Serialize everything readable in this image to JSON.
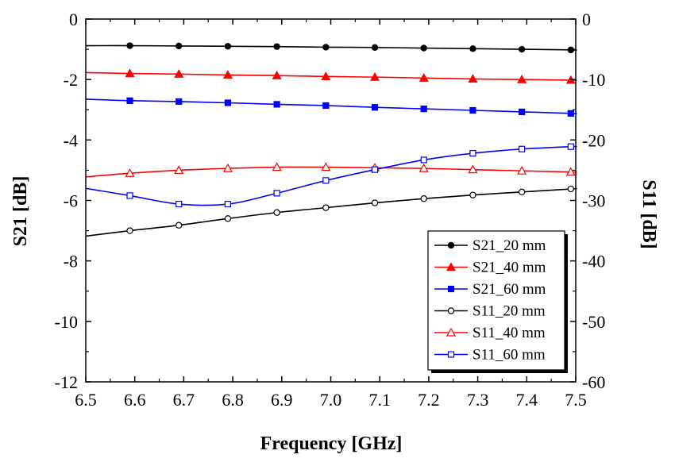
{
  "chart_data": {
    "type": "line",
    "xlabel": "Frequency [GHz]",
    "ylabel_left": "S21 [dB]",
    "ylabel_right": "S11 [dB]",
    "xlim": [
      6.5,
      7.5
    ],
    "ylim_left": [
      -12,
      0
    ],
    "ylim_right": [
      -60,
      0
    ],
    "x_ticks": [
      "6.5",
      "6.6",
      "6.7",
      "6.8",
      "6.9",
      "7.0",
      "7.1",
      "7.2",
      "7.3",
      "7.4",
      "7.5"
    ],
    "y_ticks_left": [
      "0",
      "-2",
      "-4",
      "-6",
      "-8",
      "-10",
      "-12"
    ],
    "y_ticks_right": [
      "0",
      "-10",
      "-20",
      "-30",
      "-40",
      "-50",
      "-60"
    ],
    "grid": false,
    "legend_position": "bottom-right",
    "series": [
      {
        "name": "S21_20 mm",
        "axis": "left",
        "color": "#000000",
        "marker": "filled-circle",
        "x": [
          6.5,
          6.59,
          6.69,
          6.79,
          6.89,
          6.99,
          7.09,
          7.19,
          7.29,
          7.39,
          7.49,
          7.5
        ],
        "values": [
          -0.88,
          -0.88,
          -0.89,
          -0.9,
          -0.91,
          -0.93,
          -0.94,
          -0.96,
          -0.98,
          -1.0,
          -1.02,
          -1.03
        ]
      },
      {
        "name": "S21_40 mm",
        "axis": "left",
        "color": "#ff0000",
        "marker": "filled-triangle",
        "x": [
          6.5,
          6.59,
          6.69,
          6.79,
          6.89,
          6.99,
          7.09,
          7.19,
          7.29,
          7.39,
          7.49,
          7.5
        ],
        "values": [
          -1.77,
          -1.8,
          -1.82,
          -1.85,
          -1.87,
          -1.9,
          -1.92,
          -1.95,
          -1.98,
          -2.0,
          -2.02,
          -2.03
        ]
      },
      {
        "name": "S21_60 mm",
        "axis": "left",
        "color": "#0000ff",
        "marker": "filled-square",
        "x": [
          6.5,
          6.59,
          6.69,
          6.79,
          6.89,
          6.99,
          7.09,
          7.19,
          7.29,
          7.39,
          7.49,
          7.5
        ],
        "values": [
          -2.65,
          -2.7,
          -2.73,
          -2.77,
          -2.82,
          -2.86,
          -2.92,
          -2.97,
          -3.02,
          -3.07,
          -3.12,
          -3.13
        ]
      },
      {
        "name": "S11_20 mm",
        "axis": "right",
        "color": "#000000",
        "marker": "open-circle",
        "x": [
          6.5,
          6.59,
          6.69,
          6.79,
          6.89,
          6.99,
          7.09,
          7.19,
          7.29,
          7.39,
          7.49,
          7.5
        ],
        "values": [
          -35.9,
          -35.0,
          -34.1,
          -33.0,
          -32.0,
          -31.2,
          -30.4,
          -29.7,
          -29.1,
          -28.6,
          -28.1,
          -28.1
        ]
      },
      {
        "name": "S11_40 mm",
        "axis": "right",
        "color": "#ff0000",
        "marker": "open-triangle",
        "x": [
          6.5,
          6.59,
          6.69,
          6.79,
          6.89,
          6.99,
          7.09,
          7.19,
          7.29,
          7.39,
          7.49,
          7.5
        ],
        "values": [
          -26.1,
          -25.5,
          -25.0,
          -24.7,
          -24.5,
          -24.5,
          -24.6,
          -24.7,
          -24.9,
          -25.1,
          -25.3,
          -25.3
        ]
      },
      {
        "name": "S11_60 mm",
        "axis": "right",
        "color": "#0000ff",
        "marker": "open-square",
        "x": [
          6.5,
          6.59,
          6.69,
          6.79,
          6.89,
          6.99,
          7.09,
          7.19,
          7.29,
          7.39,
          7.49,
          7.5
        ],
        "values": [
          -28.0,
          -29.2,
          -30.6,
          -30.6,
          -28.8,
          -26.7,
          -24.9,
          -23.3,
          -22.2,
          -21.5,
          -21.1,
          -21.1
        ]
      }
    ]
  }
}
